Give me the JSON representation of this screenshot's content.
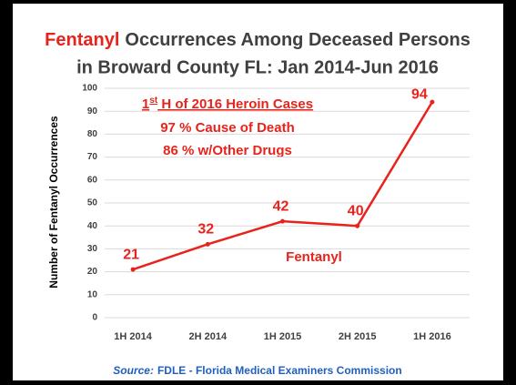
{
  "chart_data": {
    "type": "line",
    "title": {
      "highlight": "Fentanyl",
      "line1": "Occurrences Among Deceased Persons",
      "line2": "in Broward County FL: Jan 2014-Jun 2016"
    },
    "y_label": "Number of Fentanyl Occurrences",
    "categories": [
      "1H 2014",
      "2H 2014",
      "1H 2015",
      "2H 2015",
      "1H 2016"
    ],
    "series": [
      {
        "name": "Fentanyl",
        "color": "#e8231c",
        "values": [
          21,
          32,
          42,
          40,
          94
        ]
      }
    ],
    "ylim": [
      0,
      100
    ],
    "yticks": [
      0,
      10,
      20,
      30,
      40,
      50,
      60,
      70,
      80,
      90,
      100
    ],
    "grid": true,
    "annotation": {
      "heading": [
        "1",
        "st",
        " H of 2016 Heroin Cases"
      ],
      "lines": [
        "97 % Cause of Death",
        "86 % w/Other Drugs"
      ]
    },
    "source": {
      "label": "Source:",
      "text": "FDLE - Florida Medical Examiners Commission"
    }
  }
}
